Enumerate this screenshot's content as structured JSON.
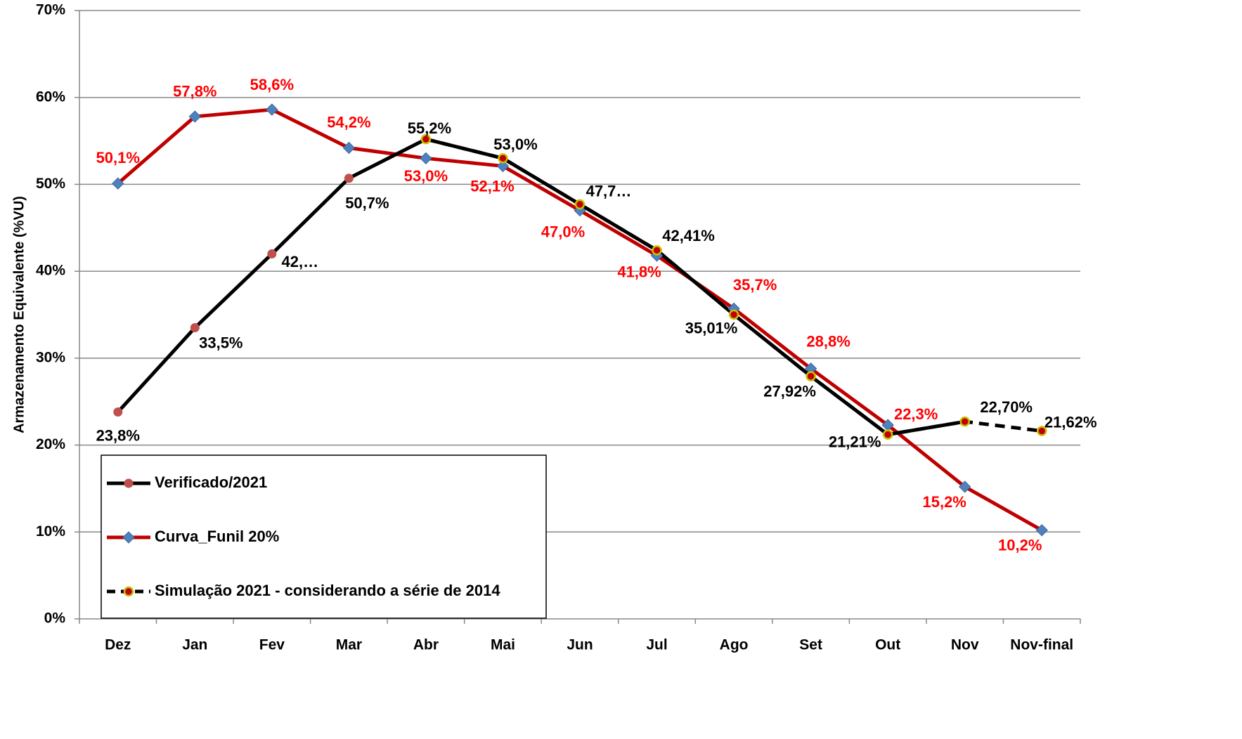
{
  "chart_data": {
    "type": "line",
    "y_label": "Armazenamento Equivalente (%VU)",
    "categories": [
      "Dez",
      "Jan",
      "Fev",
      "Mar",
      "Abr",
      "Mai",
      "Jun",
      "Jul",
      "Ago",
      "Set",
      "Out",
      "Nov",
      "Nov-final"
    ],
    "ylim": [
      0,
      70
    ],
    "yticks": [
      {
        "value": 0,
        "label": "0%"
      },
      {
        "value": 10,
        "label": "10%"
      },
      {
        "value": 20,
        "label": "20%"
      },
      {
        "value": 30,
        "label": "30%"
      },
      {
        "value": 40,
        "label": "40%"
      },
      {
        "value": 50,
        "label": "50%"
      },
      {
        "value": 60,
        "label": "60%"
      },
      {
        "value": 70,
        "label": "70%"
      }
    ],
    "grid": true,
    "series": [
      {
        "name": "Verificado/2021",
        "color": "#000000",
        "marker_color": "#c0504d",
        "label_color": "#000000",
        "values": [
          23.8,
          33.5,
          42,
          50.7,
          55.2,
          53.0,
          47.7,
          42.41,
          35.01,
          27.92,
          21.21,
          22.7,
          null
        ],
        "value_labels": [
          "23,8%",
          "33,5%",
          "42,…",
          "50,7%",
          "55,2%",
          "53,0%",
          "47,7…",
          "42,41%",
          "35,01%",
          "27,92%",
          "21,21%",
          "22,70%",
          null
        ]
      },
      {
        "name": "Curva_Funil 20%",
        "color": "#c00000",
        "marker_color": "#4f81bd",
        "label_color": "#ff0000",
        "values": [
          50.1,
          57.8,
          58.6,
          54.2,
          53.0,
          52.1,
          47.0,
          41.8,
          35.7,
          28.8,
          22.3,
          15.2,
          10.2
        ],
        "value_labels": [
          "50,1%",
          "57,8%",
          "58,6%",
          "54,2%",
          "53,0%",
          "52,1%",
          "47,0%",
          "41,8%",
          "35,7%",
          "28,8%",
          "22,3%",
          "15,2%",
          "10,2%"
        ]
      },
      {
        "name": "Simulação 2021 - considerando a série de 2014",
        "color": "#000000",
        "marker_color": "#c00000",
        "label_color": "#000000",
        "dashed": true,
        "values": [
          null,
          null,
          null,
          null,
          55.2,
          53.0,
          47.7,
          42.41,
          35.01,
          27.92,
          21.21,
          22.7,
          21.62
        ],
        "value_labels": [
          null,
          null,
          null,
          null,
          null,
          null,
          null,
          null,
          null,
          null,
          null,
          null,
          "21,62%"
        ]
      }
    ]
  }
}
